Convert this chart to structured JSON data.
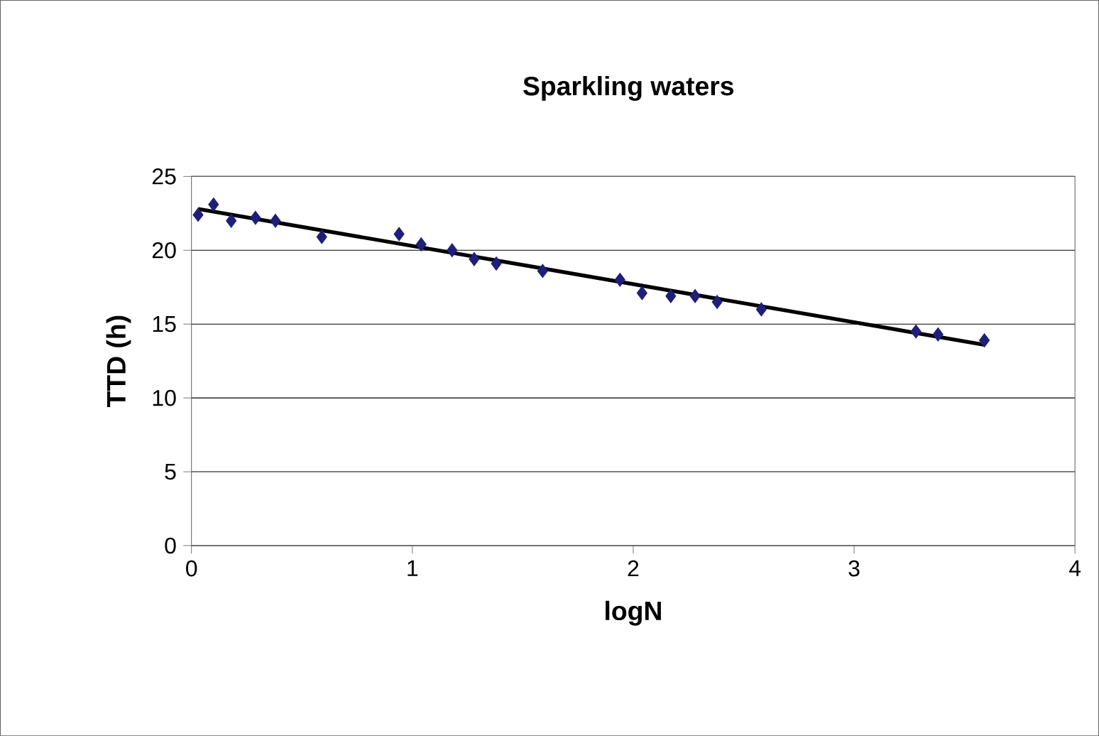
{
  "chart_data": {
    "type": "scatter",
    "title": "Sparkling waters",
    "xlabel": "logN",
    "ylabel": "TTD (h)",
    "xlim": [
      0,
      4
    ],
    "ylim": [
      0,
      25
    ],
    "xticks": [
      0,
      1,
      2,
      3,
      4
    ],
    "yticks": [
      0,
      5,
      10,
      15,
      20,
      25
    ],
    "grid": "y",
    "marker": "diamond",
    "series": [
      {
        "color": "#1f1f7a",
        "x": [
          0.03,
          0.1,
          0.18,
          0.29,
          0.38,
          0.59,
          0.94,
          1.04,
          1.18,
          1.28,
          1.38,
          1.59,
          1.94,
          2.04,
          2.17,
          2.28,
          2.38,
          2.58,
          3.28,
          3.38,
          3.59
        ],
        "values": [
          22.4,
          23.1,
          22,
          22.2,
          22,
          20.9,
          21.1,
          20.4,
          20,
          19.4,
          19.1,
          18.6,
          18,
          17.1,
          16.9,
          16.9,
          16.5,
          16,
          14.5,
          14.3,
          13.9
        ]
      },
      {
        "type": "line",
        "color": "#000000",
        "marker": "none",
        "x": [
          0.03,
          3.59
        ],
        "values": [
          22.8,
          13.6
        ]
      }
    ]
  }
}
